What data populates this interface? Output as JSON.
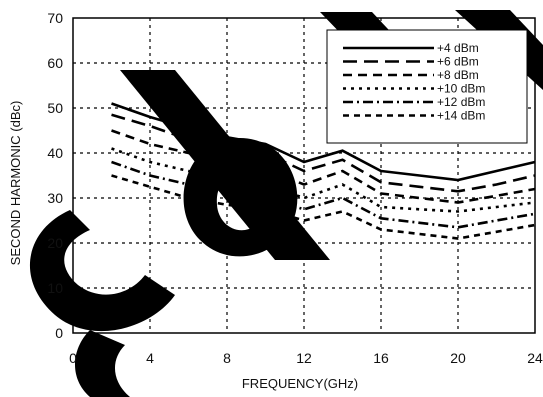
{
  "chart_data": {
    "type": "line",
    "title": "",
    "xlabel": "FREQUENCY(GHz)",
    "ylabel": "SECOND HARMONIC (dBc)",
    "xlim": [
      0,
      24
    ],
    "ylim": [
      0,
      70
    ],
    "xticks": [
      0,
      4,
      8,
      12,
      16,
      20,
      24
    ],
    "yticks": [
      0,
      10,
      20,
      30,
      40,
      50,
      60,
      70
    ],
    "grid": true,
    "legend_position": "top-right",
    "x": [
      2,
      4,
      6,
      8,
      10,
      12,
      14,
      16,
      18,
      20,
      22,
      24
    ],
    "series": [
      {
        "name": "+4 dBm",
        "dash": "solid",
        "values": [
          51,
          48,
          45.5,
          43.5,
          42,
          38,
          40.5,
          36,
          35,
          34,
          36,
          38
        ]
      },
      {
        "name": "+6 dBm",
        "dash": "long",
        "values": [
          48.5,
          46,
          43,
          41,
          40,
          36,
          38.5,
          33.5,
          32.5,
          31.5,
          33,
          35
        ]
      },
      {
        "name": "+8 dBm",
        "dash": "medium",
        "values": [
          45,
          42,
          40,
          38,
          36.5,
          33,
          36,
          31,
          30,
          29,
          30.5,
          32
        ]
      },
      {
        "name": "+10 dBm",
        "dash": "dot",
        "values": [
          41,
          38,
          36,
          35,
          33,
          30,
          33,
          28,
          27.5,
          27,
          28,
          29
        ]
      },
      {
        "name": "+12 dBm",
        "dash": "dashdot",
        "values": [
          38,
          35,
          33,
          31,
          30,
          27.5,
          30,
          25.5,
          24.5,
          23.5,
          25,
          26.5
        ]
      },
      {
        "name": "+14 dBm",
        "dash": "short",
        "values": [
          35,
          32.5,
          30,
          28.5,
          27.5,
          25,
          27,
          23,
          22,
          21,
          22.5,
          24
        ]
      }
    ]
  },
  "watermark": "Sol"
}
